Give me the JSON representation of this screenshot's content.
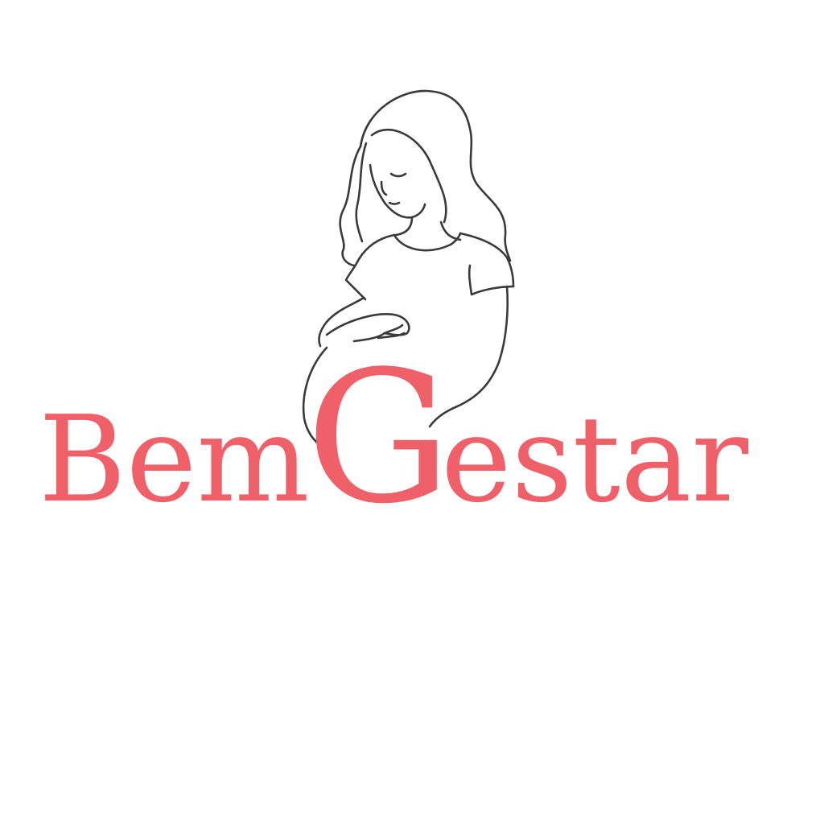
{
  "brand": {
    "name_part_1": "Bem",
    "name_part_2": "G",
    "name_part_3": "estar",
    "full_name": "BemGestar",
    "text_color": "#f06068",
    "line_color": "#3a3a3a"
  },
  "illustration": {
    "icon": "pregnant-woman-line-art-icon"
  }
}
